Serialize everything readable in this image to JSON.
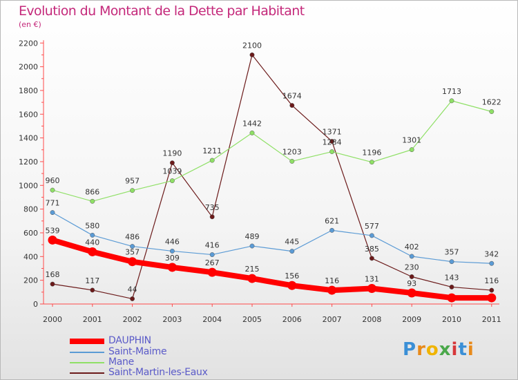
{
  "title": "Evolution du Montant de la Dette par Habitant",
  "subtitle": "(en €)",
  "brand": "Proxiti",
  "chart_data": {
    "type": "line",
    "x": [
      "2000",
      "2001",
      "2002",
      "2003",
      "2004",
      "2005",
      "2006",
      "2007",
      "2008",
      "2009",
      "2010",
      "2011"
    ],
    "ylim": [
      0,
      2200
    ],
    "yticks": [
      0,
      200,
      400,
      600,
      800,
      1000,
      1200,
      1400,
      1600,
      1800,
      2000,
      2200
    ],
    "grid": false,
    "legend_position": "bottom-left",
    "series": [
      {
        "name": "DAUPHIN",
        "color": "#ff0000",
        "values": [
          539,
          440,
          357,
          309,
          267,
          215,
          156,
          116,
          131,
          93,
          52,
          52
        ],
        "labels": [
          "539",
          "440",
          "357",
          "309",
          "267",
          "215",
          "156",
          "116",
          "131",
          "93",
          "",
          ""
        ]
      },
      {
        "name": "Saint-Maime",
        "color": "#5b9bd5",
        "values": [
          771,
          580,
          486,
          446,
          416,
          489,
          445,
          621,
          577,
          402,
          357,
          342
        ],
        "labels": [
          "771",
          "580",
          "486",
          "446",
          "416",
          "489",
          "445",
          "621",
          "577",
          "402",
          "357",
          "342"
        ]
      },
      {
        "name": "Mane",
        "color": "#8fe066",
        "values": [
          960,
          866,
          957,
          1039,
          1211,
          1442,
          1203,
          1284,
          1196,
          1301,
          1713,
          1622
        ],
        "labels": [
          "960",
          "866",
          "957",
          "1039",
          "1211",
          "1442",
          "1203",
          "1284",
          "1196",
          "1301",
          "1713",
          "1622"
        ]
      },
      {
        "name": "Saint-Martin-les-Eaux",
        "color": "#6b1a1a",
        "values": [
          168,
          117,
          44,
          1190,
          735,
          2100,
          1674,
          1371,
          385,
          230,
          143,
          116
        ],
        "labels": [
          "168",
          "117",
          "44",
          "1190",
          "735",
          "2100",
          "1674",
          "1371",
          "385",
          "230",
          "143",
          "116"
        ]
      }
    ]
  }
}
